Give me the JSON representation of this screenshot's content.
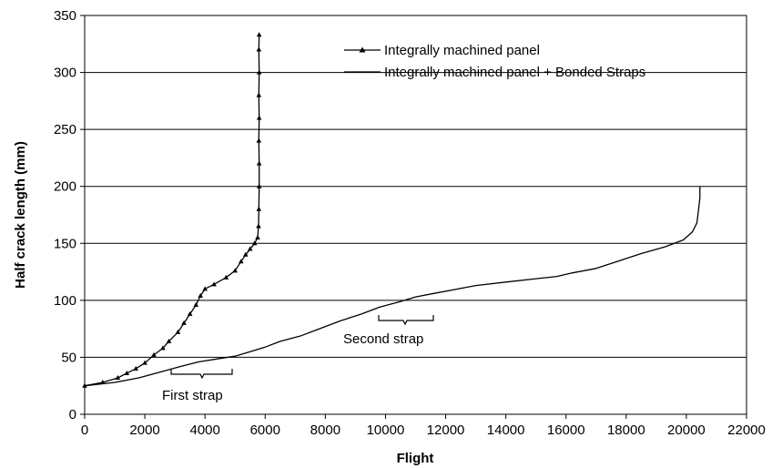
{
  "chart_data": {
    "type": "line",
    "title": "",
    "xlabel": "Flight",
    "ylabel": "Half crack length (mm)",
    "xlim": [
      0,
      22000
    ],
    "ylim": [
      0,
      350
    ],
    "x_ticks": [
      "0",
      "2000",
      "4000",
      "6000",
      "8000",
      "10000",
      "12000",
      "14000",
      "16000",
      "18000",
      "20000",
      "22000"
    ],
    "y_ticks": [
      "0",
      "50",
      "100",
      "150",
      "200",
      "250",
      "300",
      "350"
    ],
    "grid": "horizontal",
    "legend_position": "top-right",
    "series": [
      {
        "name": "Integrally machined panel",
        "marker": "triangle",
        "x": [
          0,
          600,
          1100,
          1400,
          1700,
          2000,
          2300,
          2600,
          2800,
          3100,
          3300,
          3500,
          3700,
          3850,
          4000,
          4300,
          4700,
          5000,
          5200,
          5350,
          5500,
          5650,
          5750,
          5780,
          5790,
          5800,
          5800,
          5790,
          5800,
          5790,
          5800,
          5790,
          5800
        ],
        "y": [
          25,
          28,
          32,
          36,
          40,
          45,
          52,
          58,
          64,
          72,
          80,
          88,
          96,
          104,
          110,
          114,
          120,
          126,
          134,
          140,
          145,
          150,
          155,
          165,
          180,
          200,
          220,
          240,
          260,
          280,
          300,
          320,
          333
        ]
      },
      {
        "name": "Integrally machined panel + Bonded Straps",
        "marker": "none",
        "x": [
          0,
          1000,
          1800,
          2500,
          3200,
          3800,
          4500,
          5000,
          5500,
          6000,
          6500,
          7200,
          7800,
          8500,
          9200,
          9800,
          10500,
          11000,
          11600,
          12200,
          13000,
          14000,
          15000,
          15700,
          16200,
          17000,
          17800,
          18500,
          19300,
          19900,
          20200,
          20350,
          20400,
          20450,
          20450
        ],
        "y": [
          25,
          28,
          32,
          37,
          42,
          46,
          49,
          51,
          55,
          59,
          64,
          69,
          75,
          82,
          88,
          94,
          99,
          103,
          106,
          109,
          113,
          116,
          119,
          121,
          124,
          128,
          135,
          141,
          147,
          153,
          160,
          168,
          178,
          190,
          200
        ]
      }
    ],
    "annotations": [
      "First strap",
      "Second strap"
    ]
  }
}
